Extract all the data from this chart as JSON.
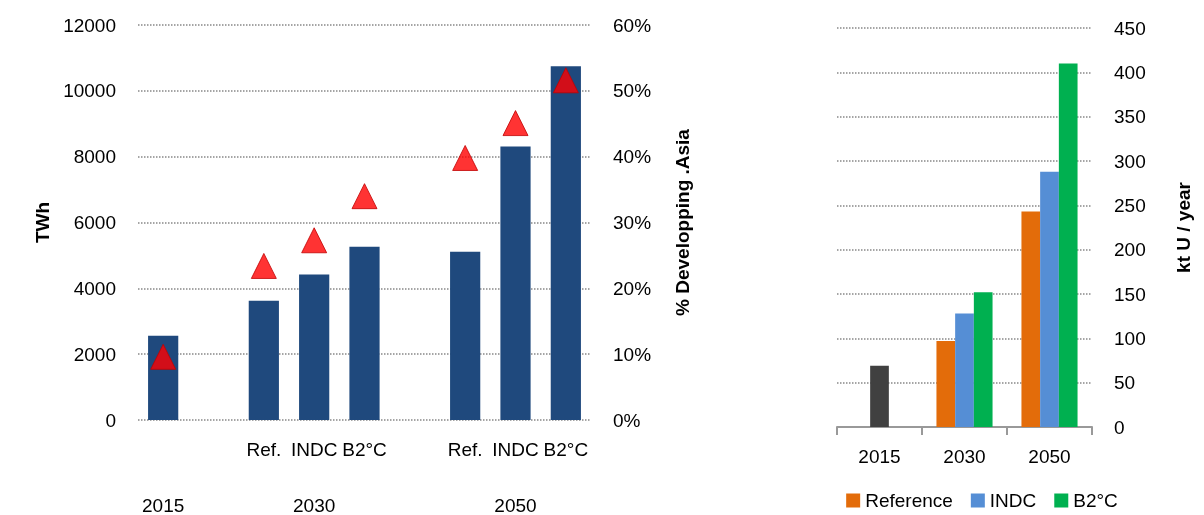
{
  "chart_data": [
    {
      "type": "bar",
      "ylabel": "TWh",
      "y2label": "% Developping .Asia",
      "categories": [
        null,
        null,
        "Ref.",
        "INDC",
        "B2°C",
        null,
        "Ref.",
        "INDC",
        "B2°C"
      ],
      "series": [
        {
          "color": "#1f497d",
          "values": [
            2560,
            null,
            3620,
            4420,
            5260,
            null,
            5110,
            8310,
            10750
          ]
        },
        {
          "type": "scatter",
          "axis": "y2",
          "marker": "triangle",
          "color": "#ff0000",
          "values": [
            9.6,
            null,
            23.4,
            27.3,
            34,
            null,
            39.8,
            45.1,
            51.6
          ]
        }
      ],
      "ylim": [
        0,
        12000
      ],
      "yticks": [
        0,
        2000,
        4000,
        6000,
        8000,
        10000,
        12000
      ],
      "y2lim": [
        0,
        60
      ],
      "y2ticks": [
        {
          "value": 0,
          "label": "0%"
        },
        {
          "value": 10,
          "label": "10%"
        },
        {
          "value": 20,
          "label": "20%"
        },
        {
          "value": 30,
          "label": "30%"
        },
        {
          "value": 40,
          "label": "40%"
        },
        {
          "value": 50,
          "label": "50%"
        },
        {
          "value": 60,
          "label": "60%"
        }
      ],
      "annotations": [
        "2015",
        "2030",
        "2050"
      ],
      "grid": "y",
      "legend": false
    },
    {
      "type": "bar",
      "ylabel": "kt U / year",
      "categories": [
        "2015",
        "2030",
        "2050"
      ],
      "series": [
        {
          "color": "#404040",
          "values": [
            69,
            null,
            null
          ]
        },
        {
          "name": "Reference",
          "color": "#e36c0a",
          "values": [
            null,
            97,
            243
          ]
        },
        {
          "name": "INDC",
          "color": "#558ed5",
          "values": [
            null,
            128,
            288
          ]
        },
        {
          "name": "B2°C",
          "color": "#00b050",
          "values": [
            null,
            152,
            410
          ]
        }
      ],
      "ylim": [
        0,
        450
      ],
      "yticks": [
        0,
        50,
        100,
        150,
        200,
        250,
        300,
        350,
        400,
        450
      ],
      "grid": "y",
      "legend": "bottom"
    }
  ]
}
